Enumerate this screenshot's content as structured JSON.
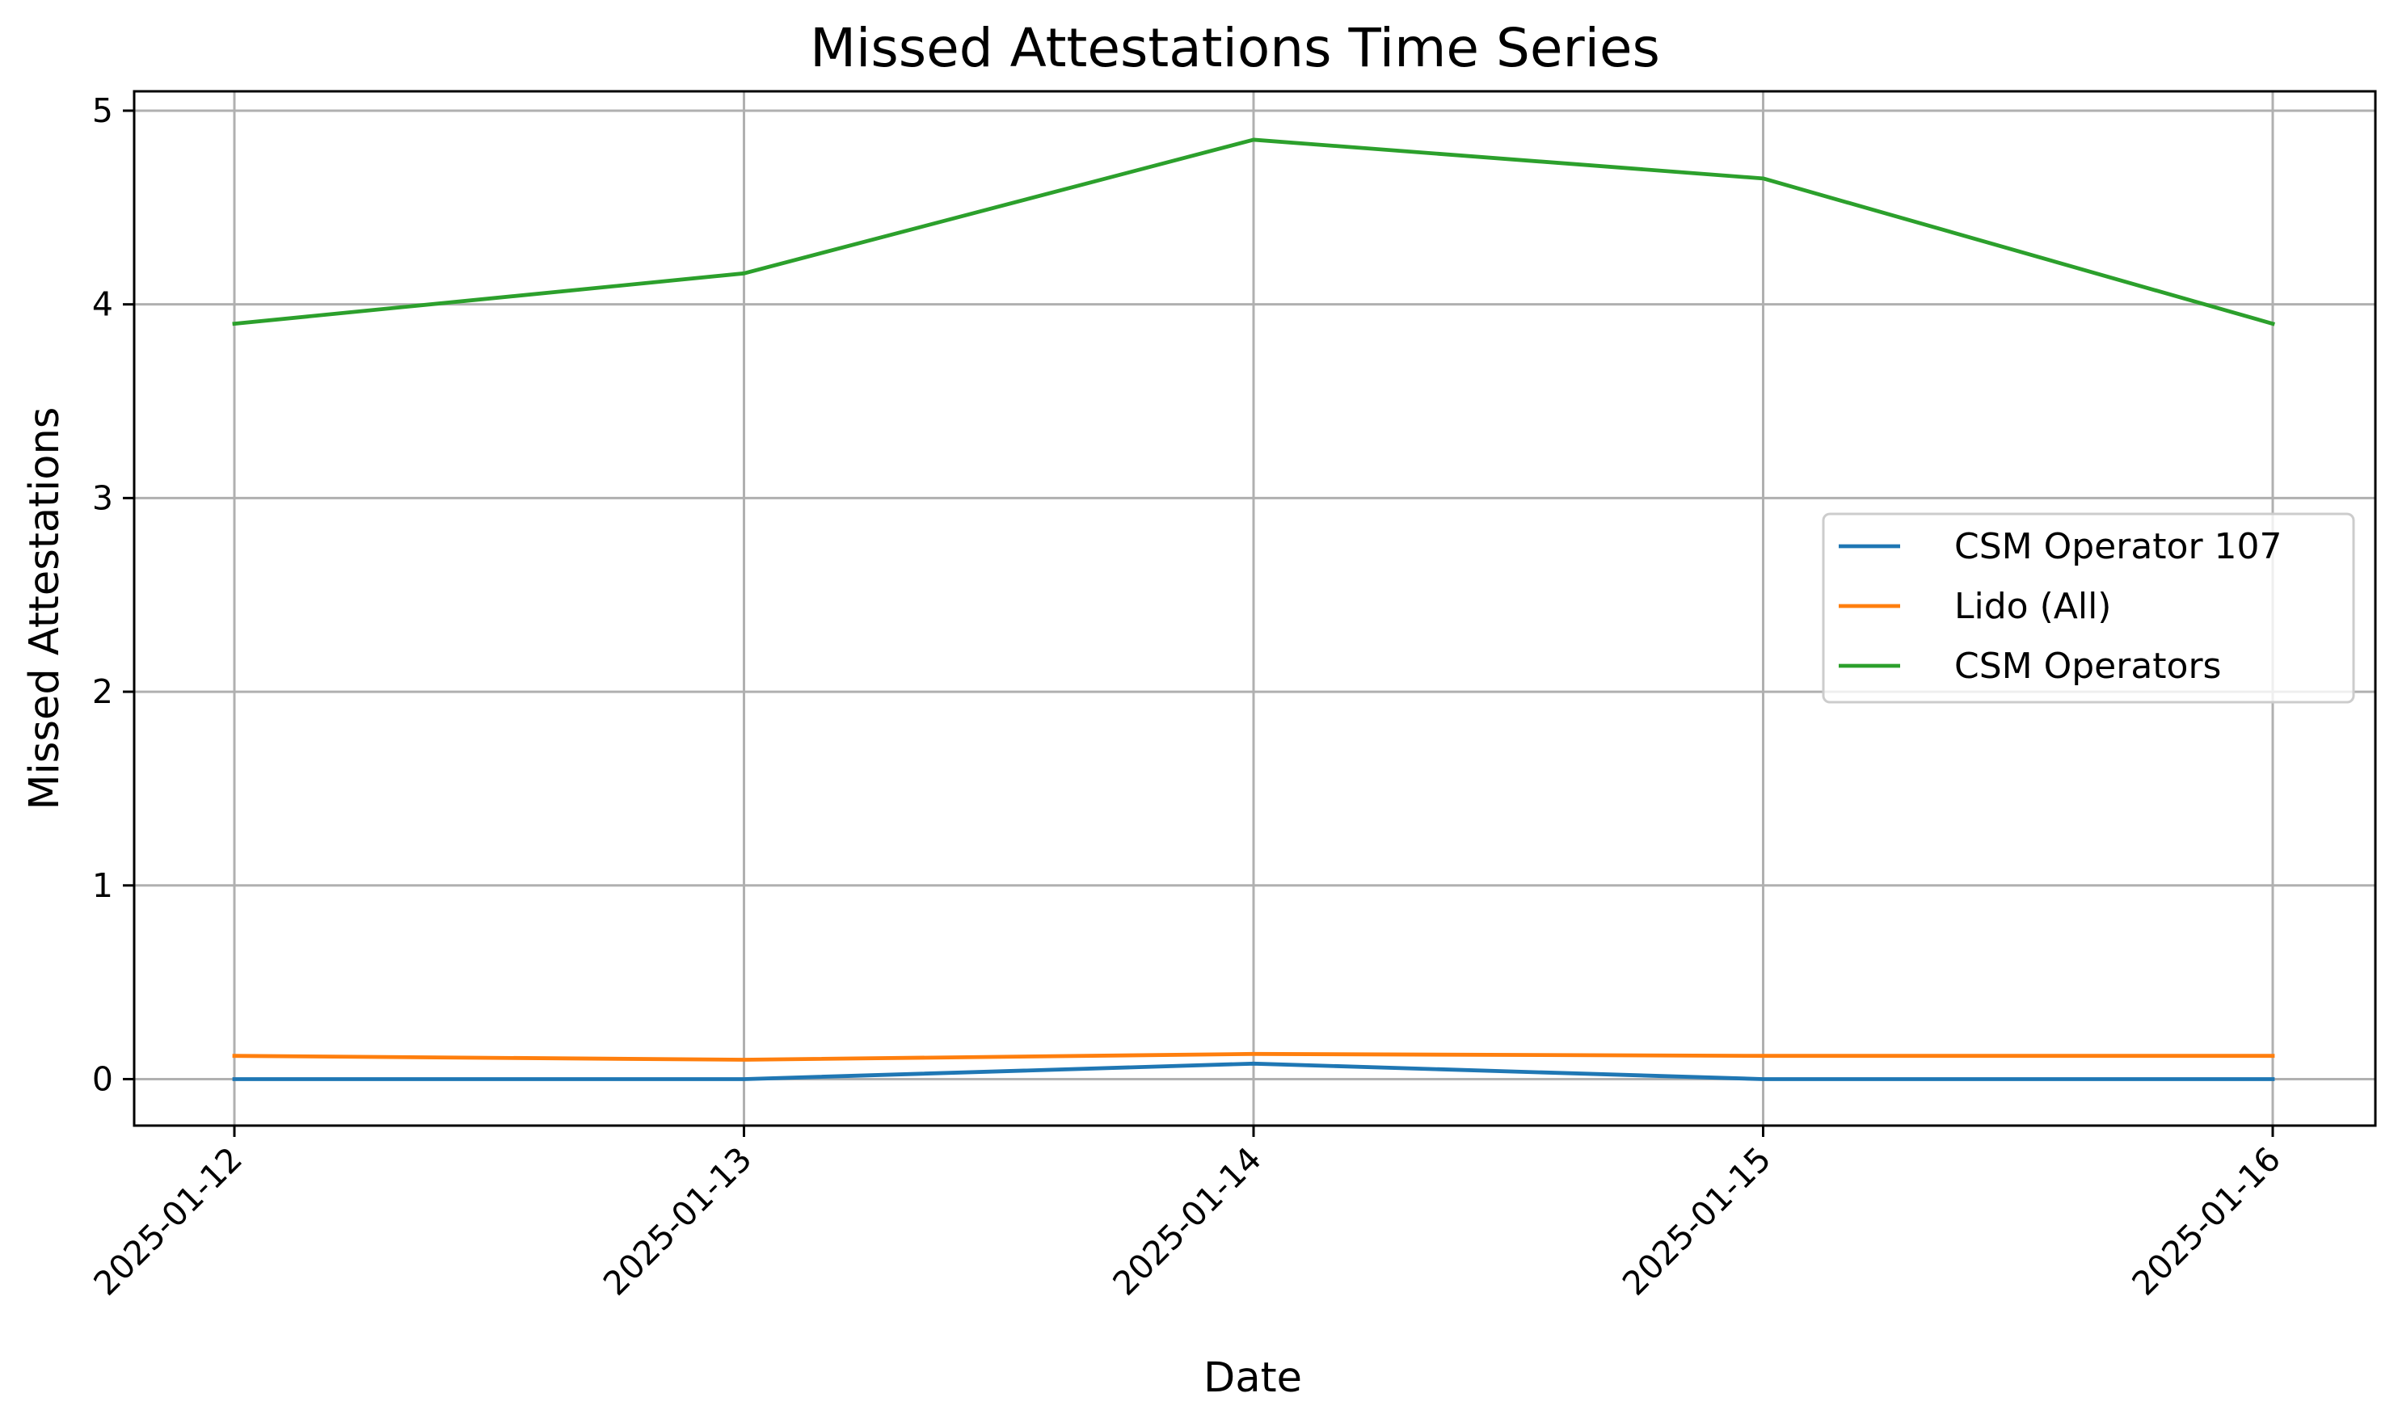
{
  "chart_data": {
    "type": "line",
    "title": "Missed Attestations Time Series",
    "xlabel": "Date",
    "ylabel": "Missed Attestations",
    "x": [
      "2025-01-12",
      "2025-01-13",
      "2025-01-14",
      "2025-01-15",
      "2025-01-16"
    ],
    "yticks": [
      "0",
      "1",
      "2",
      "3",
      "4",
      "5"
    ],
    "ylim": [
      -0.24,
      5.1
    ],
    "grid": true,
    "legend_position": "center-right",
    "series": [
      {
        "name": "CSM Operator 107",
        "color": "#1f77b4",
        "values": [
          0.0,
          0.0,
          0.08,
          0.0,
          0.0
        ]
      },
      {
        "name": "Lido (All)",
        "color": "#ff7f0e",
        "values": [
          0.12,
          0.1,
          0.13,
          0.12,
          0.12
        ]
      },
      {
        "name": "CSM Operators",
        "color": "#2ca02c",
        "values": [
          3.9,
          4.16,
          4.85,
          4.65,
          3.9
        ]
      }
    ]
  }
}
